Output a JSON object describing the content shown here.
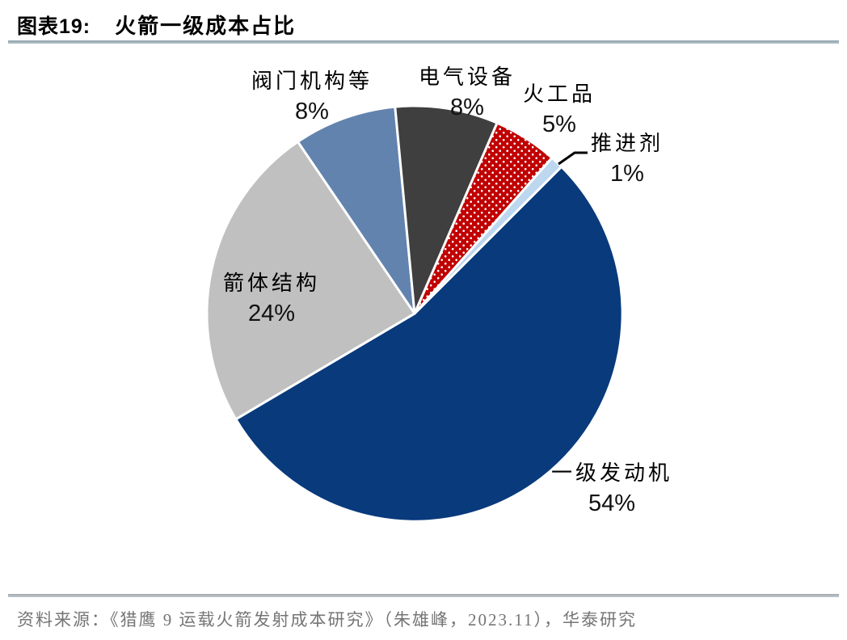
{
  "header": {
    "figure_label": "图表19:",
    "title": "火箭一级成本占比"
  },
  "chart_data": {
    "type": "pie",
    "title": "火箭一级成本占比",
    "start_angle_deg": 45,
    "direction": "clockwise",
    "unit": "%",
    "categories": [
      "一级发动机",
      "箭体结构",
      "阀门机构等",
      "电气设备",
      "火工品",
      "推进剂"
    ],
    "values": [
      54,
      24,
      8,
      8,
      5,
      1
    ],
    "slices": [
      {
        "label": "一级发动机",
        "value": 54,
        "pct": "54%",
        "color": "#083A7C"
      },
      {
        "label": "箭体结构",
        "value": 24,
        "pct": "24%",
        "color": "#C0C0C0"
      },
      {
        "label": "阀门机构等",
        "value": 8,
        "pct": "8%",
        "color": "#6283AE"
      },
      {
        "label": "电气设备",
        "value": 8,
        "pct": "8%",
        "color": "#3F3F3F"
      },
      {
        "label": "火工品",
        "value": 5,
        "pct": "5%",
        "color": "#C00000",
        "pattern": "white-dots"
      },
      {
        "label": "推进剂",
        "value": 1,
        "pct": "1%",
        "color": "#BDD7EE"
      }
    ],
    "colors": {
      "slice_border": "#FFFFFF",
      "pattern_dot": "#FFFFFF",
      "leader_line": "#000000"
    },
    "legend": "none",
    "labels_position": "outside-and-inside"
  },
  "footer": {
    "source": "资料来源：《猎鹰 9 运载火箭发射成本研究》（朱雄峰，2023.11），华泰研究"
  }
}
